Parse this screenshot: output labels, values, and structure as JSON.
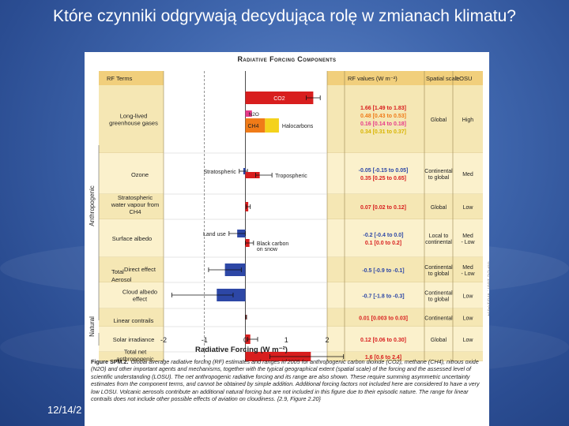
{
  "slide": {
    "title": "Które czynniki odgrywają decydująca rolę w zmianach klimatu?",
    "date": "12/14/2"
  },
  "colors": {
    "positive": "#d81e1e",
    "negative": "#2d47a6",
    "rowA": "#f5e7b4",
    "rowB": "#fbf1cc",
    "header": "#f1cf7c",
    "n2o": "#e63a8a",
    "ch4": "#f07b18",
    "halocarbons": "#f4d21c"
  },
  "figure_title": "Radiative Forcing Components",
  "figure_side_label": "©IPCC 2007: WG1-AR4",
  "caption": {
    "label": "Figure SPM.2.",
    "text": "Global average radiative forcing (RF) estimates and ranges in 2005 for anthropogenic carbon dioxide (CO2), methane (CH4), nitrous oxide (N2O) and other important agents and mechanisms, together with the typical geographical extent (spatial scale) of the forcing and the assessed level of scientific understanding (LOSU). The net anthropogenic radiative forcing and its range are also shown. These require summing asymmetric uncertainty estimates from the component terms, and cannot be obtained by simple addition. Additional forcing factors not included here are considered to have a very low LOSU. Volcanic aerosols contribute an additional natural forcing but are not included in this figure due to their episodic nature. The range for linear contrails does not include other possible effects of aviation on cloudiness. {2.9, Figure 2.20}"
  },
  "chart_data": {
    "type": "bar",
    "orientation": "horizontal",
    "xlabel": "Radiative Forcing  (W m⁻²)",
    "xlim": [
      -2,
      2
    ],
    "xticks": [
      "-2",
      "-1",
      "0",
      "1",
      "2"
    ],
    "column_headers": {
      "terms": "RF Terms",
      "values": "RF values (W m⁻²)",
      "scale": "Spatial scale",
      "losu": "LOSU"
    },
    "group_labels": {
      "anthropogenic": "Anthropogenic",
      "natural": "Natural",
      "total_aerosol": "Total Aerosol"
    },
    "rows": [
      {
        "term": "Long-lived greenhouse gases",
        "components": [
          {
            "name": "CO2",
            "value": 1.66,
            "range": [
              1.49,
              1.83
            ]
          },
          {
            "name": "N2O",
            "value": 0.16,
            "range": [
              0.14,
              0.18
            ]
          },
          {
            "name": "CH4",
            "value": 0.48,
            "range": [
              0.43,
              0.53
            ]
          },
          {
            "name": "Halocarbons",
            "value": 0.34,
            "range": [
              0.31,
              0.37
            ]
          }
        ],
        "values_text": [
          "1.66 [1.49 to 1.83]",
          "0.48 [0.43 to 0.53]",
          "0.16 [0.14 to 0.18]",
          "0.34 [0.31 to 0.37]"
        ],
        "scale": "Global",
        "losu": "High"
      },
      {
        "term": "Ozone",
        "components": [
          {
            "name": "Stratospheric",
            "value": -0.05,
            "range": [
              -0.15,
              0.05
            ]
          },
          {
            "name": "Tropospheric",
            "value": 0.35,
            "range": [
              0.25,
              0.65
            ]
          }
        ],
        "values_text": [
          "-0.05 [-0.15 to 0.05]",
          "0.35 [0.25 to 0.65]"
        ],
        "scale": "Continental to global",
        "losu": "Med"
      },
      {
        "term": "Stratospheric water vapour from CH4",
        "components": [
          {
            "name": "",
            "value": 0.07,
            "range": [
              0.02,
              0.12
            ]
          }
        ],
        "values_text": [
          "0.07 [0.02 to 0.12]"
        ],
        "scale": "Global",
        "losu": "Low"
      },
      {
        "term": "Surface albedo",
        "components": [
          {
            "name": "Land use",
            "value": -0.2,
            "range": [
              -0.4,
              0.0
            ]
          },
          {
            "name": "Black carbon on snow",
            "value": 0.1,
            "range": [
              0.0,
              0.2
            ]
          }
        ],
        "values_text": [
          "-0.2 [-0.4 to 0.0]",
          "0.1 [0.0 to 0.2]"
        ],
        "scale": "Local to continental",
        "losu": "Med - Low"
      },
      {
        "term": "Direct effect",
        "components": [
          {
            "name": "",
            "value": -0.5,
            "range": [
              -0.9,
              -0.1
            ]
          }
        ],
        "values_text": [
          "-0.5 [-0.9 to -0.1]"
        ],
        "scale": "Continental to global",
        "losu": "Med - Low"
      },
      {
        "term": "Cloud albedo effect",
        "components": [
          {
            "name": "",
            "value": -0.7,
            "range": [
              -1.8,
              -0.3
            ]
          }
        ],
        "values_text": [
          "-0.7 [-1.8 to -0.3]"
        ],
        "scale": "Continental to global",
        "losu": "Low"
      },
      {
        "term": "Linear contrails",
        "components": [
          {
            "name": "",
            "value": 0.01,
            "range": [
              0.003,
              0.03
            ]
          }
        ],
        "values_text": [
          "0.01 [0.003 to 0.03]"
        ],
        "scale": "Continental",
        "losu": "Low"
      },
      {
        "term": "Solar irradiance",
        "components": [
          {
            "name": "",
            "value": 0.12,
            "range": [
              0.06,
              0.3
            ]
          }
        ],
        "values_text": [
          "0.12 [0.06 to 0.30]"
        ],
        "scale": "Global",
        "losu": "Low"
      },
      {
        "term": "Total net anthropogenic",
        "components": [
          {
            "name": "",
            "value": 1.6,
            "range": [
              0.6,
              2.4
            ]
          }
        ],
        "values_text": [
          "1.6 [0.6 to 2.4]"
        ],
        "scale": "",
        "losu": ""
      }
    ]
  }
}
